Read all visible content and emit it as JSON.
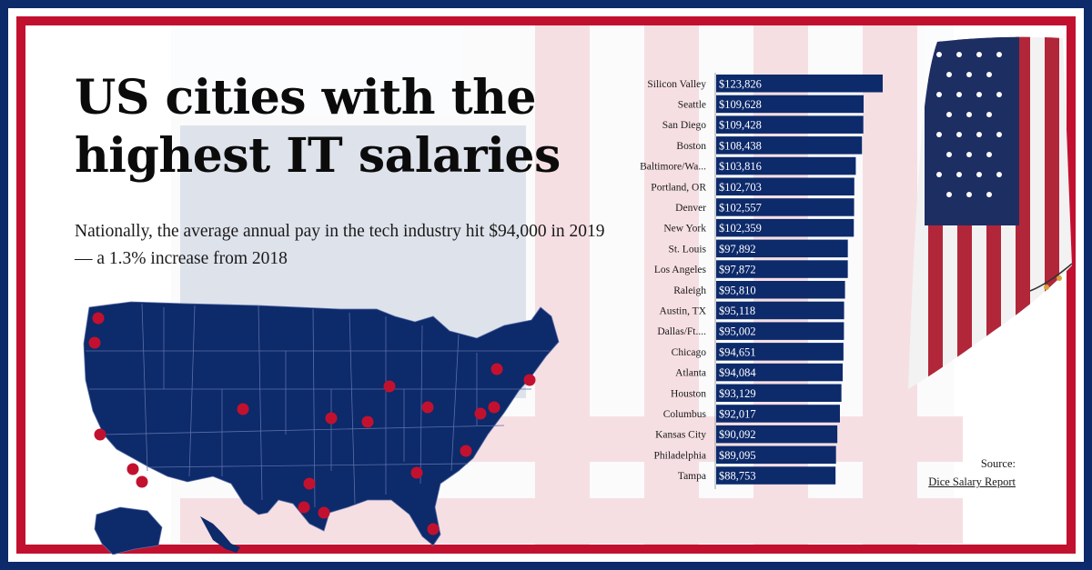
{
  "header": {
    "title": "US cities with the highest IT salaries",
    "subtitle": "Nationally, the average annual pay in the tech industry hit $94,000 in 2019 — a 1.3% increase from 2018"
  },
  "source": {
    "label": "Source:",
    "link_text": "Dice Salary Report"
  },
  "colors": {
    "navy": "#0d2a6b",
    "red": "#c2112f",
    "bar": "#0d2a6b",
    "bar_text": "#ffffff",
    "city_dot": "#c2112f"
  },
  "icons": {
    "map": "us-states-map-icon",
    "flag": "american-flag-icon"
  },
  "chart_data": {
    "type": "bar",
    "orientation": "horizontal",
    "categories": [
      "Silicon Valley",
      "Seattle",
      "San Diego",
      "Boston",
      "Baltimore/Wa...",
      "Portland, OR",
      "Denver",
      "New York",
      "St. Louis",
      "Los Angeles",
      "Raleigh",
      "Austin, TX",
      "Dallas/Ft....",
      "Chicago",
      "Atlanta",
      "Houston",
      "Columbus",
      "Kansas City",
      "Philadelphia",
      "Tampa"
    ],
    "values": [
      123826,
      109628,
      109428,
      108438,
      103816,
      102703,
      102557,
      102359,
      97892,
      97872,
      95810,
      95118,
      95002,
      94651,
      94084,
      93129,
      92017,
      90092,
      89095,
      88753
    ],
    "value_labels": [
      "$123,826",
      "$109,628",
      "$109,428",
      "$108,438",
      "$103,816",
      "$102,703",
      "$102,557",
      "$102,359",
      "$97,892",
      "$97,872",
      "$95,810",
      "$95,118",
      "$95,002",
      "$94,651",
      "$94,084",
      "$93,129",
      "$92,017",
      "$90,092",
      "$89,095",
      "$88,753"
    ],
    "title": "",
    "xlabel": "",
    "ylabel": "",
    "xlim": [
      0,
      125000
    ],
    "grid": false,
    "legend": "none"
  }
}
